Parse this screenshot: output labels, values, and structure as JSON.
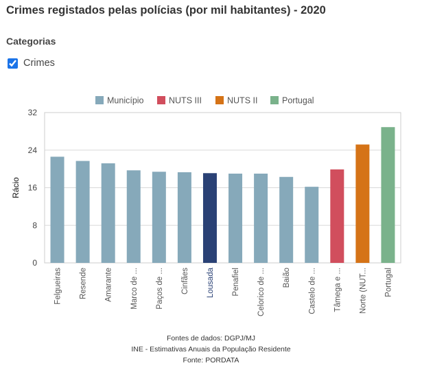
{
  "title": "Crimes registados pelas polícias (por mil habitantes) - 2020",
  "filters": {
    "section_label": "Categorias",
    "checkbox_label": "Crimes",
    "checked": true
  },
  "chart_data": {
    "type": "bar",
    "title": "",
    "xlabel": "",
    "ylabel": "Rácio",
    "ylim": [
      0,
      32
    ],
    "yticks": [
      0,
      8,
      16,
      24,
      32
    ],
    "grid": true,
    "legend": {
      "placement": "top",
      "entries": [
        {
          "name": "Município",
          "color": "#86a9ba"
        },
        {
          "name": "NUTS III",
          "color": "#d14e5d"
        },
        {
          "name": "NUTS II",
          "color": "#d57317"
        },
        {
          "name": "Portugal",
          "color": "#7ab28b"
        }
      ]
    },
    "categories": [
      "Felgueiras",
      "Resende",
      "Amarante",
      "Marco de ...",
      "Paços de ...",
      "Cinfães",
      "Lousada",
      "Penafiel",
      "Celorico de ...",
      "Baião",
      "Castelo de ...",
      "Tâmega e ...",
      "Norte (NUT...",
      "Portugal"
    ],
    "values": [
      22.6,
      21.7,
      21.2,
      19.7,
      19.4,
      19.3,
      19.1,
      19.0,
      19.0,
      18.3,
      16.2,
      19.9,
      25.2,
      28.9
    ],
    "groups": [
      "Município",
      "Município",
      "Município",
      "Município",
      "Município",
      "Município",
      "Município",
      "Município",
      "Município",
      "Município",
      "Município",
      "NUTS III",
      "NUTS II",
      "Portugal"
    ],
    "highlight": {
      "category": "Lousada",
      "color": "#2a4175",
      "label_color": "#2a4175"
    }
  },
  "footer": {
    "lines": [
      "Fontes de dados: DGPJ/MJ",
      "INE - Estimativas Anuais da População Residente",
      "Fonte: PORDATA"
    ]
  }
}
